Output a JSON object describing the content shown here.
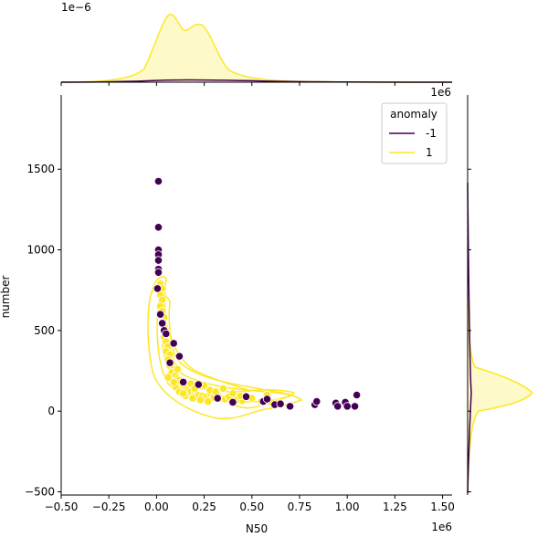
{
  "chart_data": {
    "type": "scatter",
    "subtype": "jointplot-kde",
    "xlabel": "N50",
    "ylabel": "number",
    "x_scale_label": "1e6",
    "y_scale_label": "",
    "top_marginal_scale_label": "1e−6",
    "right_marginal_scale_label": "1e6",
    "xlim": [
      -0.5,
      1.55
    ],
    "ylim": [
      -520,
      1960
    ],
    "x_ticks": [
      -0.5,
      -0.25,
      0.0,
      0.25,
      0.5,
      0.75,
      1.0,
      1.25,
      1.5
    ],
    "x_tick_labels": [
      "−0.50",
      "−0.25",
      "0.00",
      "0.25",
      "0.50",
      "0.75",
      "1.00",
      "1.25",
      "1.50"
    ],
    "y_ticks": [
      -500,
      0,
      500,
      1000,
      1500
    ],
    "y_tick_labels": [
      "−500",
      "0",
      "500",
      "1000",
      "1500"
    ],
    "legend": {
      "title": "anomaly",
      "placement": "top-right",
      "entries": [
        {
          "label": "-1",
          "color": "#440154"
        },
        {
          "label": "1",
          "color": "#fde725"
        }
      ]
    },
    "series": [
      {
        "name": "-1",
        "color": "#440154",
        "points": [
          [
            0.01,
            1425
          ],
          [
            0.01,
            1140
          ],
          [
            0.01,
            1000
          ],
          [
            0.01,
            970
          ],
          [
            0.01,
            935
          ],
          [
            0.01,
            880
          ],
          [
            0.01,
            860
          ],
          [
            0.005,
            760
          ],
          [
            0.02,
            600
          ],
          [
            0.03,
            545
          ],
          [
            0.04,
            500
          ],
          [
            0.05,
            480
          ],
          [
            0.09,
            420
          ],
          [
            0.12,
            340
          ],
          [
            0.07,
            300
          ],
          [
            0.14,
            180
          ],
          [
            0.22,
            165
          ],
          [
            0.32,
            80
          ],
          [
            0.4,
            55
          ],
          [
            0.47,
            90
          ],
          [
            0.56,
            60
          ],
          [
            0.58,
            75
          ],
          [
            0.62,
            40
          ],
          [
            0.65,
            45
          ],
          [
            0.7,
            30
          ],
          [
            0.83,
            40
          ],
          [
            0.84,
            60
          ],
          [
            0.94,
            50
          ],
          [
            0.95,
            30
          ],
          [
            0.99,
            55
          ],
          [
            1.0,
            30
          ],
          [
            1.04,
            30
          ],
          [
            1.05,
            100
          ]
        ]
      },
      {
        "name": "1",
        "color": "#fde725",
        "points": [
          [
            0.02,
            790
          ],
          [
            0.03,
            760
          ],
          [
            0.02,
            720
          ],
          [
            0.03,
            690
          ],
          [
            0.02,
            650
          ],
          [
            0.03,
            620
          ],
          [
            0.04,
            580
          ],
          [
            0.03,
            550
          ],
          [
            0.04,
            520
          ],
          [
            0.05,
            490
          ],
          [
            0.04,
            460
          ],
          [
            0.05,
            430
          ],
          [
            0.06,
            400
          ],
          [
            0.05,
            370
          ],
          [
            0.07,
            350
          ],
          [
            0.06,
            320
          ],
          [
            0.08,
            300
          ],
          [
            0.07,
            280
          ],
          [
            0.09,
            260
          ],
          [
            0.08,
            240
          ],
          [
            0.1,
            220
          ],
          [
            0.11,
            200
          ],
          [
            0.12,
            190
          ],
          [
            0.13,
            175
          ],
          [
            0.14,
            160
          ],
          [
            0.15,
            150
          ],
          [
            0.16,
            140
          ],
          [
            0.17,
            130
          ],
          [
            0.18,
            120
          ],
          [
            0.2,
            115
          ],
          [
            0.21,
            105
          ],
          [
            0.22,
            100
          ],
          [
            0.24,
            95
          ],
          [
            0.26,
            90
          ],
          [
            0.28,
            110
          ],
          [
            0.3,
            85
          ],
          [
            0.32,
            100
          ],
          [
            0.34,
            80
          ],
          [
            0.36,
            75
          ],
          [
            0.38,
            90
          ],
          [
            0.42,
            70
          ],
          [
            0.45,
            65
          ],
          [
            0.5,
            80
          ],
          [
            0.55,
            60
          ],
          [
            0.58,
            100
          ],
          [
            0.6,
            55
          ],
          [
            0.64,
            50
          ],
          [
            0.1,
            150
          ],
          [
            0.12,
            120
          ],
          [
            0.15,
            95
          ],
          [
            0.18,
            170
          ],
          [
            0.2,
            140
          ],
          [
            0.25,
            160
          ],
          [
            0.28,
            130
          ],
          [
            0.06,
            210
          ],
          [
            0.09,
            180
          ],
          [
            0.11,
            260
          ],
          [
            0.14,
            110
          ],
          [
            0.19,
            80
          ],
          [
            0.23,
            70
          ],
          [
            0.27,
            60
          ],
          [
            0.31,
            120
          ],
          [
            0.35,
            140
          ],
          [
            0.4,
            110
          ],
          [
            0.44,
            95
          ]
        ]
      }
    ]
  }
}
